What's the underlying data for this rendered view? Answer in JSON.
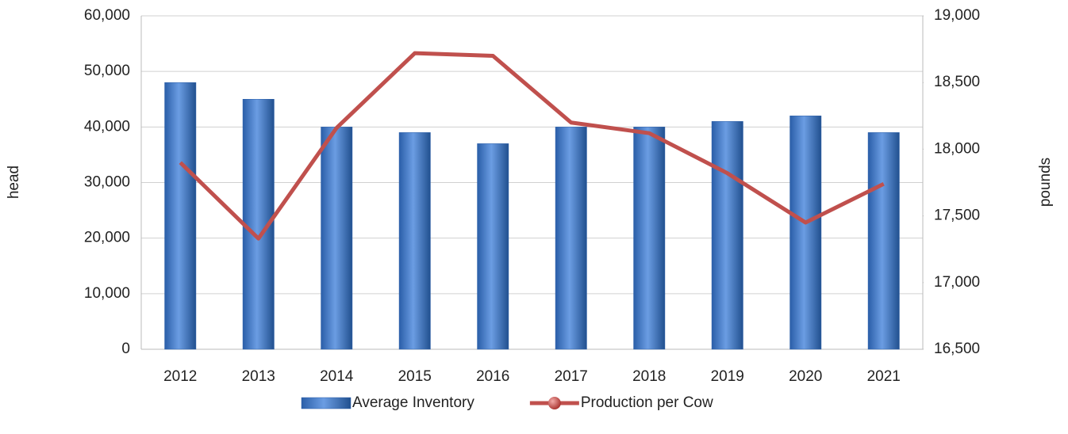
{
  "chart_data": {
    "type": "bar-line",
    "categories": [
      "2012",
      "2013",
      "2014",
      "2015",
      "2016",
      "2017",
      "2018",
      "2019",
      "2020",
      "2021"
    ],
    "series": [
      {
        "name": "Average Inventory",
        "type": "bar",
        "color": "#4a7fcf",
        "axis": "y",
        "values": [
          48000,
          45000,
          40000,
          39000,
          37000,
          40000,
          40000,
          41000,
          42000,
          39000
        ]
      },
      {
        "name": "Production per Cow",
        "type": "line",
        "color": "#c0504d",
        "axis": "y2",
        "values": [
          17900,
          17330,
          18160,
          18720,
          18700,
          18200,
          18120,
          17820,
          17450,
          17740
        ]
      }
    ],
    "ylabel": "head",
    "y2label": "pounds",
    "ylim": [
      0,
      60000
    ],
    "yticks": [
      0,
      {
        "value": 10000,
        "label": "10,000"
      },
      {
        "value": 20000,
        "label": "20,000"
      },
      {
        "value": 30000,
        "label": "30,000"
      },
      {
        "value": 40000,
        "label": "40,000"
      },
      {
        "value": 50000,
        "label": "50,000"
      },
      {
        "value": 60000,
        "label": "60,000"
      }
    ],
    "y2lim": [
      16500,
      19000
    ],
    "y2ticks": [
      {
        "value": 16500,
        "label": "16,500"
      },
      {
        "value": 17000,
        "label": "17,000"
      },
      {
        "value": 17500,
        "label": "17,500"
      },
      {
        "value": 18000,
        "label": "18,000"
      },
      {
        "value": 18500,
        "label": "18,500"
      },
      {
        "value": 19000,
        "label": "19,000"
      }
    ],
    "grid": true,
    "legend": "bottom"
  }
}
